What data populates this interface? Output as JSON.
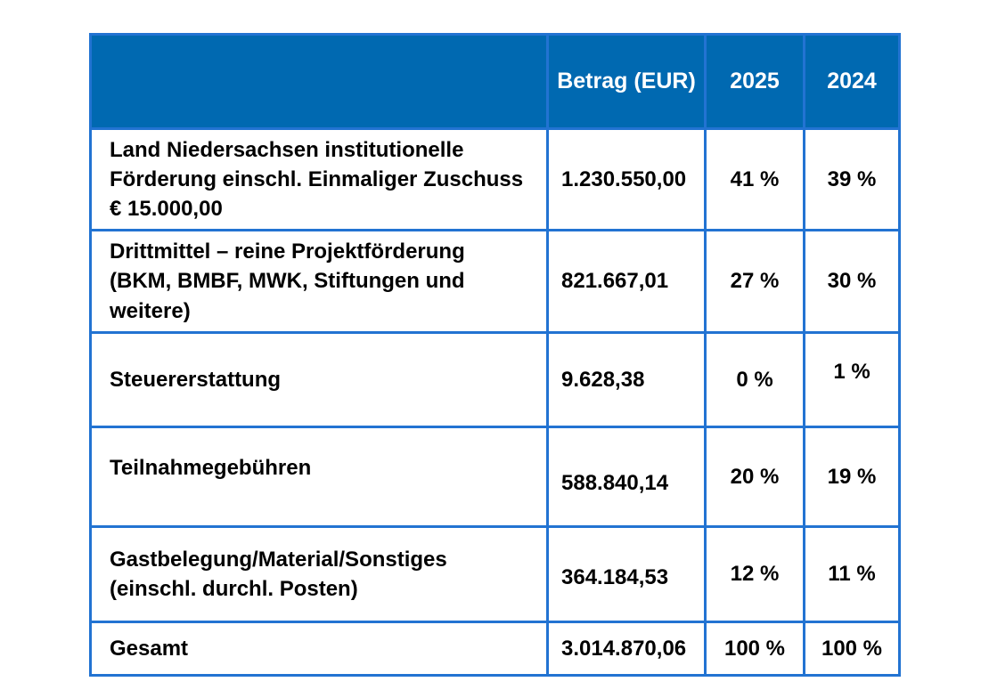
{
  "page": {
    "background_color": "#FFFFFF"
  },
  "table": {
    "colors": {
      "header_background": "#0069B1",
      "header_text": "#FFFFFF",
      "border": "#2273D2",
      "body_text": "#000000"
    },
    "header": {
      "label": "",
      "betrag": "Betrag (EUR)",
      "y2025": "2025",
      "y2024": "2024"
    },
    "rows": [
      {
        "label": "Land Niedersachsen institutionelle Förderung einschl. Einmaliger Zuschuss € 15.000,00",
        "betrag": "1.230.550,00",
        "p2025": "41 %",
        "p2024": "39 %"
      },
      {
        "label": "Drittmittel – reine Projektförderung (BKM, BMBF, MWK, Stiftungen und weitere)",
        "betrag": "821.667,01",
        "p2025": "27 %",
        "p2024": "30 %"
      },
      {
        "label": "Steuererstattung",
        "betrag": "9.628,38",
        "p2025": "0 %",
        "p2024": "1 %"
      },
      {
        "label": "Teilnahmegebühren",
        "betrag": "588.840,14",
        "p2025": "20 %",
        "p2024": "19 %"
      },
      {
        "label": "Gastbelegung/Material/Sonstiges (einschl. durchl. Posten)",
        "betrag": "364.184,53",
        "p2025": "12 %",
        "p2024": "11 %"
      },
      {
        "label": "Gesamt",
        "betrag": "3.014.870,06",
        "p2025": "100 %",
        "p2024": "100 %"
      }
    ]
  }
}
